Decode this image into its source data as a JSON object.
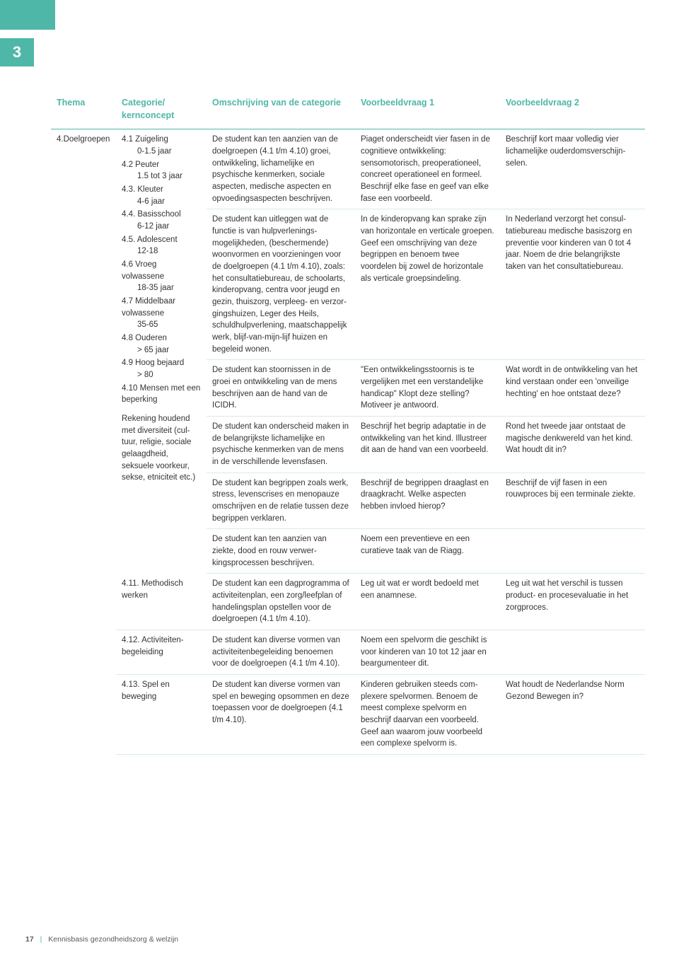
{
  "chapter_number": "3",
  "table": {
    "headers": {
      "thema": "Thema",
      "categorie": "Categorie/\nkernconcept",
      "omschrijving": "Omschrijving van de categorie",
      "vv1": "Voorbeeldvraag 1",
      "vv2": "Voorbeeldvraag 2"
    },
    "thema": "4.Doelgroepen",
    "categorie_items": [
      {
        "num": "4.1",
        "label": "Zuigeling",
        "sub": "0-1.5 jaar"
      },
      {
        "num": "4.2",
        "label": "Peuter",
        "sub": "1.5 tot 3 jaar"
      },
      {
        "num": "4.3.",
        "label": "Kleuter",
        "sub": "4-6 jaar"
      },
      {
        "num": "4.4.",
        "label": "Basisschool",
        "sub": "6-12 jaar"
      },
      {
        "num": "4.5.",
        "label": "Adolescent",
        "sub": "12-18"
      },
      {
        "num": "4.6",
        "label": "Vroeg volwassene",
        "sub": "18-35 jaar"
      },
      {
        "num": "4.7",
        "label": "Middelbaar volwassene",
        "sub": "35-65"
      },
      {
        "num": "4.8",
        "label": "Ouderen",
        "sub": "> 65 jaar"
      },
      {
        "num": "4.9",
        "label": "Hoog bejaard",
        "sub": "> 80"
      },
      {
        "num": "4.10",
        "label": "Mensen met een beperking",
        "sub": ""
      }
    ],
    "categorie_note": "Rekening houdend met diversiteit (cul­tuur, religie, soci­ale gelaagdheid, seksuele voor­keur, sekse, etniciteit etc.)",
    "rows": [
      {
        "omsch": "De student kan ten aanzien van de doelgroepen (4.1 t/m 4.10) groei, ontwikkeling, lichamelijke en psychische kenmerken, sociale aspecten, medische aspecten en opvoedingsaspecten beschrijven.",
        "v1": "Piaget onderscheidt vier fasen in de cognitieve ontwikkeling: sensomotorisch, preoperationeel, concreet operationeel en for­meel. Beschrijf elke fase en geef van elke fase een voorbeeld.",
        "v2": "Beschrijf kort maar volledig vier lichamelijke ouderdomsverschijn­selen."
      },
      {
        "omsch": "De student kan uitleggen wat de functie is van hulpverlenings­mogelijkheden, (beschermende) woonvormen en voorzieningen voor de doelgroepen (4.1 t/m 4.10), zoals: het consultatiebu­reau, de schoolarts, kinderop­vang, centra voor jeugd en gezin, thuiszorg, verpleeg- en verzor­gingshuizen, Leger des Heils, schuldhulpverlening, maatschap­pelijk werk, blijf-van-mijn-lijf huizen en begeleid wonen.",
        "v1": "In de kinderopvang kan sprake zijn van horizontale en verticale groepen. Geef een omschrijving van deze begrippen en benoem twee voordelen bij zowel de horizontale als verticale groeps­indeling.",
        "v2": "In Nederland verzorgt het consul­tatiebureau medische basiszorg en preventie voor kinderen van 0 tot 4 jaar. Noem de drie belang­rijkste taken van het consultatie­bureau."
      },
      {
        "omsch": "De student kan stoornissen in de groei en ontwikkeling van de mens beschrijven aan de hand van de ICIDH.",
        "v1": "\"Een ontwikkelingsstoornis is te vergelijken met een verstandelijke handicap\" Klopt deze stelling? Motiveer je antwoord.",
        "v2": "Wat wordt in de ontwikkeling van het kind verstaan onder een 'onveilige hechting' en hoe ontstaat deze?"
      },
      {
        "omsch": "De student kan onderscheid maken in de belangrijkste licha­melijke en psychische kenmerken van de mens in de verschillende levensfasen.",
        "v1": "Beschrijf het begrip adaptatie in de ontwikkeling van het kind. Illustreer dit aan de hand van een voorbeeld.",
        "v2": "Rond het tweede jaar ontstaat de magische denkwereld van het kind. Wat houdt dit in?"
      },
      {
        "omsch": "De student kan begrippen zoals werk, stress, levenscrises en menopauze omschrijven en de relatie tussen deze begrippen verklaren.",
        "v1": "Beschrijf de begrippen draaglast en draagkracht. Welke aspecten hebben invloed hierop?",
        "v2": "Beschrijf de vijf fasen in een rouwproces bij een terminale ziekte."
      },
      {
        "omsch": "De student kan ten aanzien van ziekte, dood en rouw verwer­kingsprocessen beschrijven.",
        "v1": "Noem een preventieve en een curatieve taak van de Riagg.",
        "v2": ""
      }
    ],
    "extra_rows": [
      {
        "cat": "4.11. Methodisch werken",
        "omsch": "De student kan een dagpro­gramma of activiteitenplan, een zorg/leefplan of handelingsplan opstellen voor de doelgroepen (4.1 t/m 4.10).",
        "v1": "Leg uit wat er wordt bedoeld met een anamnese.",
        "v2": "Leg uit wat het verschil is tussen product- en procesevaluatie in het zorgproces."
      },
      {
        "cat": "4.12. Activiteiten­begeleiding",
        "omsch": "De student kan diverse vormen van activiteitenbegeleiding benoemen voor de doelgroepen (4.1 t/m 4.10).",
        "v1": "Noem een spelvorm die geschikt is voor kinderen van 10 tot 12 jaar en beargumenteer dit.",
        "v2": ""
      },
      {
        "cat": "4.13. Spel en beweging",
        "omsch": "De student kan diverse vormen van spel en beweging opsommen en deze toepassen voor de doel­groepen (4.1 t/m 4.10).",
        "v1": "Kinderen gebruiken steeds com­plexere spelvormen. Benoem de meest complexe spelvorm en beschrijf daarvan een voorbeeld. Geef aan waarom jouw voorbeeld een complexe spelvorm is.",
        "v2": "Wat houdt de Nederlandse Norm Gezond Bewegen in?"
      }
    ]
  },
  "footer": {
    "page_number": "17",
    "separator": "|",
    "doc_title": "Kennisbasis gezondheidszorg & welzijn"
  },
  "colors": {
    "teal": "#4fb7a7",
    "rule": "#d9ebe7",
    "text": "#333333",
    "bg": "#ffffff"
  }
}
